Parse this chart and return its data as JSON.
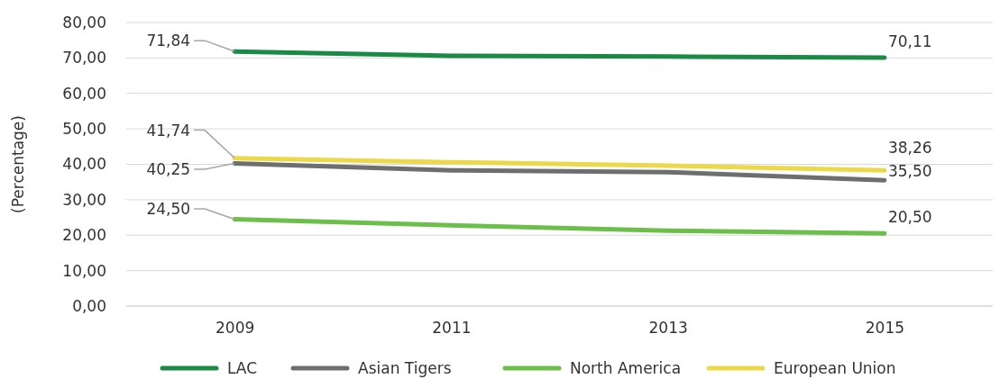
{
  "chart_data": {
    "type": "line",
    "ylabel": "(Percentage)",
    "categories": [
      "2009",
      "2011",
      "2013",
      "2015"
    ],
    "series": [
      {
        "name": "LAC",
        "color": "#1a8a45",
        "values": [
          71.84,
          70.6,
          70.4,
          70.11
        ],
        "value_labels": [
          "71,84",
          null,
          null,
          "70,11"
        ]
      },
      {
        "name": "Asian Tigers",
        "color": "#6d6e70",
        "values": [
          40.25,
          38.3,
          37.8,
          35.5
        ],
        "value_labels": [
          "40,25",
          null,
          null,
          "35,50"
        ]
      },
      {
        "name": "North America",
        "color": "#6cbf4a",
        "values": [
          24.5,
          22.8,
          21.3,
          20.5
        ],
        "value_labels": [
          "24,50",
          null,
          null,
          "20,50"
        ]
      },
      {
        "name": "European Union",
        "color": "#ecd94a",
        "values": [
          41.74,
          40.6,
          39.6,
          38.26
        ],
        "value_labels": [
          "41,74",
          null,
          null,
          "38,26"
        ]
      }
    ],
    "ylim": [
      0,
      80
    ],
    "yticks": [
      {
        "value": 0,
        "label": "0,00"
      },
      {
        "value": 10,
        "label": "10,00"
      },
      {
        "value": 20,
        "label": "20,00"
      },
      {
        "value": 30,
        "label": "30,00"
      },
      {
        "value": 40,
        "label": "40,00"
      },
      {
        "value": 50,
        "label": "50,00"
      },
      {
        "value": 60,
        "label": "60,00"
      },
      {
        "value": 70,
        "label": "70,00"
      },
      {
        "value": 80,
        "label": "80,00"
      }
    ],
    "grid": "y",
    "legend": "bottom",
    "marker": "none",
    "line_style": "solid"
  }
}
